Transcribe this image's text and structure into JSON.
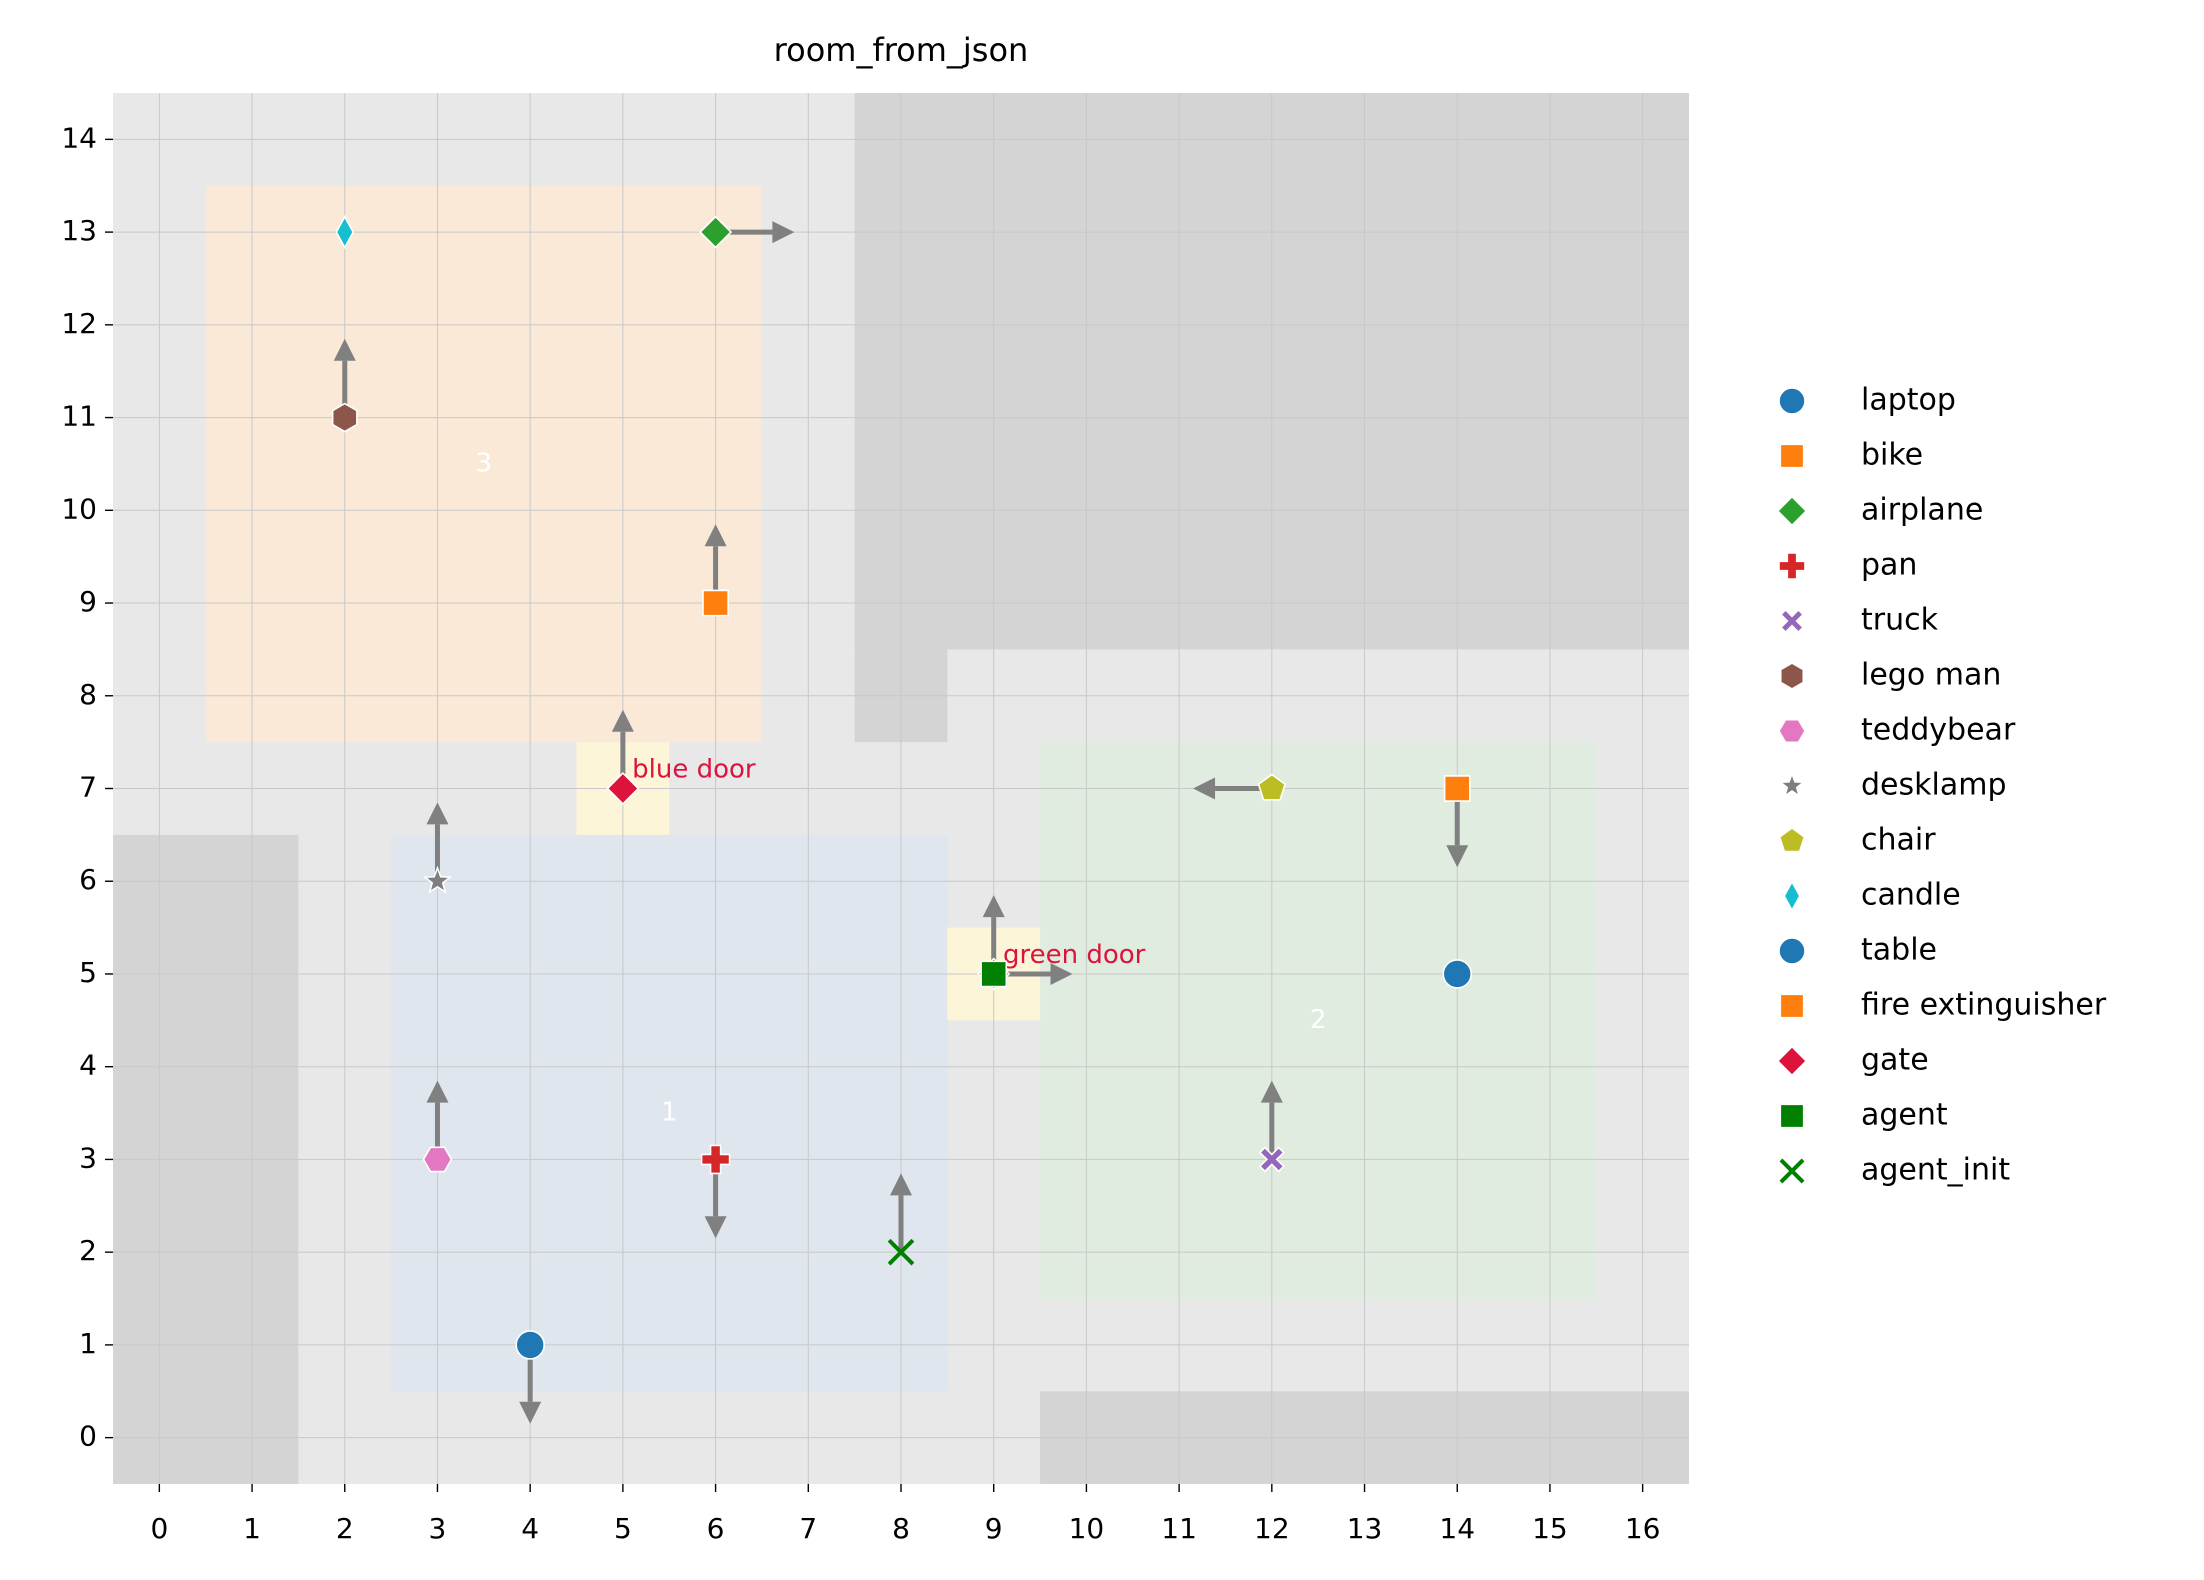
{
  "chart_data": {
    "type": "scatter",
    "title": "room_from_json",
    "xlim": [
      -0.5,
      16.5
    ],
    "ylim": [
      -0.5,
      14.5
    ],
    "xticks": [
      0,
      1,
      2,
      3,
      4,
      5,
      6,
      7,
      8,
      9,
      10,
      11,
      12,
      13,
      14,
      15,
      16
    ],
    "yticks": [
      0,
      1,
      2,
      3,
      4,
      5,
      6,
      7,
      8,
      9,
      10,
      11,
      12,
      13,
      14
    ],
    "grid": true,
    "walls": [
      {
        "x": [
          7.5,
          16.5
        ],
        "y": [
          8.5,
          14.5
        ]
      },
      {
        "x": [
          7.5,
          8.5
        ],
        "y": [
          7.5,
          8.5
        ]
      },
      {
        "x": [
          -0.5,
          1.5
        ],
        "y": [
          -0.5,
          6.5
        ]
      },
      {
        "x": [
          9.5,
          16.5
        ],
        "y": [
          -0.5,
          0.5
        ]
      }
    ],
    "rooms": [
      {
        "label": "3",
        "x": [
          0.5,
          6.5
        ],
        "y": [
          7.5,
          13.5
        ],
        "color": "#fbe9d8"
      },
      {
        "label": "1",
        "x": [
          2.5,
          8.5
        ],
        "y": [
          0.5,
          6.5
        ],
        "color": "#dfe6ee"
      },
      {
        "label": "2",
        "x": [
          9.5,
          15.5
        ],
        "y": [
          1.5,
          7.5
        ],
        "color": "#e0ecdf"
      }
    ],
    "doors": [
      {
        "label": "blue door",
        "x": [
          4.5,
          5.5
        ],
        "y": [
          6.5,
          7.5
        ]
      },
      {
        "label": "green door",
        "x": [
          8.5,
          9.5
        ],
        "y": [
          4.5,
          5.5
        ]
      }
    ],
    "series": [
      {
        "name": "laptop",
        "color": "#1f77b4",
        "marker": "o",
        "x": [
          4
        ],
        "values": [
          1
        ],
        "directions": [
          "down"
        ]
      },
      {
        "name": "bike",
        "color": "#ff7f0e",
        "marker": "s",
        "x": [
          6
        ],
        "values": [
          9
        ],
        "directions": [
          "up"
        ]
      },
      {
        "name": "airplane",
        "color": "#2ca02c",
        "marker": "D",
        "x": [
          6
        ],
        "values": [
          13
        ],
        "directions": [
          "right"
        ]
      },
      {
        "name": "pan",
        "color": "#d62728",
        "marker": "P",
        "x": [
          6
        ],
        "values": [
          3
        ],
        "directions": [
          "down"
        ]
      },
      {
        "name": "truck",
        "color": "#9467bd",
        "marker": "X",
        "x": [
          12
        ],
        "values": [
          3
        ],
        "directions": [
          "up"
        ]
      },
      {
        "name": "lego man",
        "color": "#8c564b",
        "marker": "h",
        "x": [
          2
        ],
        "values": [
          11
        ],
        "directions": [
          "up"
        ]
      },
      {
        "name": "teddybear",
        "color": "#e377c2",
        "marker": "H",
        "x": [
          3
        ],
        "values": [
          3
        ],
        "directions": [
          "up"
        ]
      },
      {
        "name": "desklamp",
        "color": "#7f7f7f",
        "marker": "*",
        "x": [
          3
        ],
        "values": [
          6
        ],
        "directions": [
          "up"
        ]
      },
      {
        "name": "chair",
        "color": "#bcbd22",
        "marker": "p",
        "x": [
          12
        ],
        "values": [
          7
        ],
        "directions": [
          "left"
        ]
      },
      {
        "name": "candle",
        "color": "#17becf",
        "marker": "d",
        "x": [
          2
        ],
        "values": [
          13
        ],
        "directions": [
          null
        ]
      },
      {
        "name": "table",
        "color": "#1f77b4",
        "marker": "o",
        "x": [
          14
        ],
        "values": [
          5
        ],
        "directions": [
          null
        ]
      },
      {
        "name": "fire extinguisher",
        "color": "#ff7f0e",
        "marker": "s",
        "x": [
          14
        ],
        "values": [
          7
        ],
        "directions": [
          "down"
        ]
      },
      {
        "name": "gate",
        "color": "#dc143c",
        "marker": "D",
        "x": [
          5,
          9
        ],
        "values": [
          7,
          5
        ],
        "directions": [
          "up",
          "up"
        ]
      },
      {
        "name": "agent",
        "color": "#008000",
        "marker": "s",
        "x": [
          9
        ],
        "values": [
          5
        ],
        "directions": [
          "right"
        ]
      },
      {
        "name": "agent_init",
        "color": "#008000",
        "marker": "x",
        "x": [
          8
        ],
        "values": [
          2
        ],
        "directions": [
          "up"
        ]
      }
    ]
  }
}
